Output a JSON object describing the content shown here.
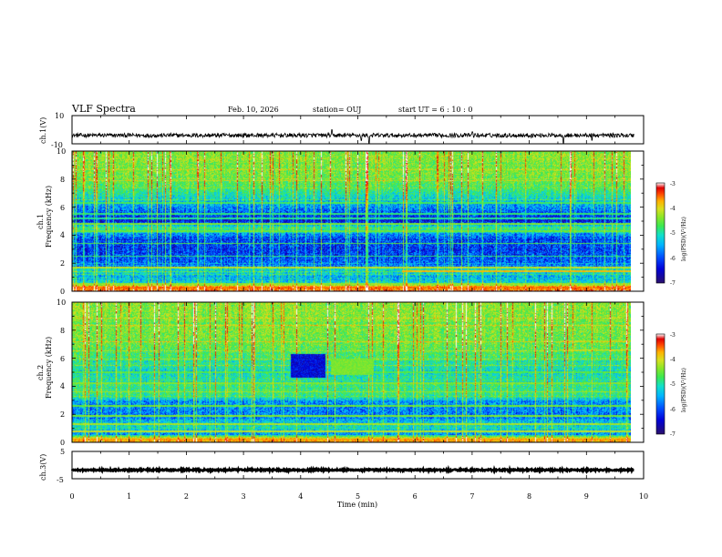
{
  "header": {
    "title": "VLF Spectra",
    "date": "Feb. 10, 2026",
    "station": "station= OUJ",
    "start_time": "start UT =  6 : 10 : 0"
  },
  "colors": {
    "waveform": "#000000",
    "colormap": [
      "#2a0f6a",
      "#0000d8",
      "#0050ff",
      "#00b4ff",
      "#12e0c8",
      "#3ce850",
      "#8ce628",
      "#d8e020",
      "#ffb000",
      "#ff4800",
      "#e00000",
      "#ffffff"
    ]
  },
  "chart_data": [
    {
      "type": "line",
      "name": "ch1-waveform",
      "ylabel": "ch.1(V)",
      "xlim": [
        0,
        9.83
      ],
      "ylim": [
        -10,
        10
      ],
      "yticks": [
        "10",
        "-10"
      ],
      "baseline": -4,
      "noise_amplitude": 1.5,
      "spikes": [
        {
          "x": 5.2,
          "y": -10
        },
        {
          "x": 5.06,
          "y": -7.6
        },
        {
          "x": 8.6,
          "y": -9.6
        },
        {
          "x": 9.1,
          "y": -7.5
        },
        {
          "x": 4.55,
          "y": 0
        },
        {
          "x": 7.0,
          "y": -1.5
        }
      ]
    },
    {
      "type": "heatmap",
      "name": "ch1-spectrogram",
      "ylabel": "ch.1\nFrequency (kHz)",
      "xlim": [
        0,
        9.83
      ],
      "ylim": [
        0,
        10
      ],
      "yticks": [
        "0",
        "2",
        "4",
        "6",
        "8",
        "10"
      ],
      "colorbar": {
        "label": "log(PSD)(V²/Hz)",
        "range": [
          -7,
          -3
        ],
        "ticks": [
          "-3",
          "-4",
          "-5",
          "-6",
          "-7"
        ]
      },
      "spectral_profile": [
        {
          "f": 0.0,
          "v": -3.8
        },
        {
          "f": 0.3,
          "v": -4.1
        },
        {
          "f": 0.6,
          "v": -5.6
        },
        {
          "f": 1.0,
          "v": -5.9
        },
        {
          "f": 1.5,
          "v": -5.5
        },
        {
          "f": 2.0,
          "v": -6.2
        },
        {
          "f": 3.0,
          "v": -6.4
        },
        {
          "f": 4.0,
          "v": -6.2
        },
        {
          "f": 4.5,
          "v": -5.2
        },
        {
          "f": 5.0,
          "v": -6.6
        },
        {
          "f": 6.0,
          "v": -6.0
        },
        {
          "f": 6.8,
          "v": -5.5
        },
        {
          "f": 7.5,
          "v": -5.1
        },
        {
          "f": 8.5,
          "v": -4.9
        },
        {
          "f": 10.0,
          "v": -4.8
        }
      ],
      "lines": [
        {
          "f": 0.25,
          "v": -3.9,
          "t0": 0,
          "t1": 9.83
        },
        {
          "f": 0.5,
          "v": -4.8,
          "t0": 0,
          "t1": 9.83
        },
        {
          "f": 1.7,
          "v": -4.6,
          "t0": 0,
          "t1": 9.83
        },
        {
          "f": 1.45,
          "v": -4.2,
          "t0": 5.8,
          "t1": 9.83
        },
        {
          "f": 2.5,
          "v": -5.3,
          "t0": 0,
          "t1": 9.83
        },
        {
          "f": 3.4,
          "v": -5.1,
          "t0": 0,
          "t1": 9.83
        },
        {
          "f": 4.3,
          "v": -5.0,
          "t0": 0,
          "t1": 9.83
        },
        {
          "f": 4.8,
          "v": -4.9,
          "t0": 0,
          "t1": 9.83
        },
        {
          "f": 5.2,
          "v": -5.4,
          "t0": 0,
          "t1": 9.83
        },
        {
          "f": 5.5,
          "v": -5.3,
          "t0": 0,
          "t1": 9.83
        },
        {
          "f": 6.3,
          "v": -5.2,
          "t0": 0,
          "t1": 9.83
        }
      ]
    },
    {
      "type": "heatmap",
      "name": "ch2-spectrogram",
      "ylabel": "ch.2\nFrequency (kHz)",
      "xlim": [
        0,
        9.83
      ],
      "ylim": [
        0,
        10
      ],
      "yticks": [
        "0",
        "2",
        "4",
        "6",
        "8",
        "10"
      ],
      "colorbar": {
        "label": "log(PSD)(V²/Hz)",
        "range": [
          -7,
          -3
        ],
        "ticks": [
          "-3",
          "-4",
          "-5",
          "-6",
          "-7"
        ]
      },
      "spectral_profile": [
        {
          "f": 0.0,
          "v": -4.0
        },
        {
          "f": 0.3,
          "v": -4.4
        },
        {
          "f": 0.6,
          "v": -6.0
        },
        {
          "f": 1.0,
          "v": -5.5
        },
        {
          "f": 1.5,
          "v": -5.8
        },
        {
          "f": 2.0,
          "v": -6.1
        },
        {
          "f": 2.8,
          "v": -6.0
        },
        {
          "f": 3.4,
          "v": -5.3
        },
        {
          "f": 4.0,
          "v": -5.2
        },
        {
          "f": 5.0,
          "v": -5.6
        },
        {
          "f": 6.0,
          "v": -5.2
        },
        {
          "f": 7.0,
          "v": -5.0
        },
        {
          "f": 8.0,
          "v": -4.9
        },
        {
          "f": 10.0,
          "v": -4.8
        }
      ],
      "lines": [
        {
          "f": 0.2,
          "v": -4.1,
          "t0": 0,
          "t1": 9.83
        },
        {
          "f": 0.8,
          "v": -4.6,
          "t0": 0,
          "t1": 9.83
        },
        {
          "f": 1.3,
          "v": -4.7,
          "t0": 0,
          "t1": 9.83
        },
        {
          "f": 1.9,
          "v": -4.9,
          "t0": 0,
          "t1": 9.83
        },
        {
          "f": 2.6,
          "v": -5.0,
          "t0": 0,
          "t1": 9.83
        },
        {
          "f": 3.6,
          "v": -4.8,
          "t0": 0,
          "t1": 9.83
        },
        {
          "f": 4.2,
          "v": -4.9,
          "t0": 0,
          "t1": 9.83
        },
        {
          "f": 5.0,
          "v": -5.1,
          "t0": 0,
          "t1": 9.83
        },
        {
          "f": 6.6,
          "v": -4.4,
          "t0": 8.6,
          "t1": 9.83
        },
        {
          "f": 7.2,
          "v": -4.7,
          "t0": 8.6,
          "t1": 9.83
        }
      ],
      "features": [
        {
          "kind": "dark-block",
          "t0": 3.85,
          "t1": 4.45,
          "f0": 4.6,
          "f1": 6.3
        },
        {
          "kind": "bright-block",
          "t0": 4.55,
          "t1": 5.3,
          "f0": 4.8,
          "f1": 6.0
        }
      ]
    },
    {
      "type": "line",
      "name": "ch3-waveform",
      "ylabel": "ch.3(V)",
      "xlim": [
        0,
        9.83
      ],
      "ylim": [
        -5,
        5
      ],
      "yticks": [
        "5",
        "-5"
      ],
      "baseline": -1.8,
      "noise_amplitude": 0.3
    }
  ],
  "xaxis": {
    "label": "Time  (min)",
    "ticks": [
      "0",
      "1",
      "2",
      "3",
      "4",
      "5",
      "6",
      "7",
      "8",
      "9",
      "10"
    ]
  }
}
